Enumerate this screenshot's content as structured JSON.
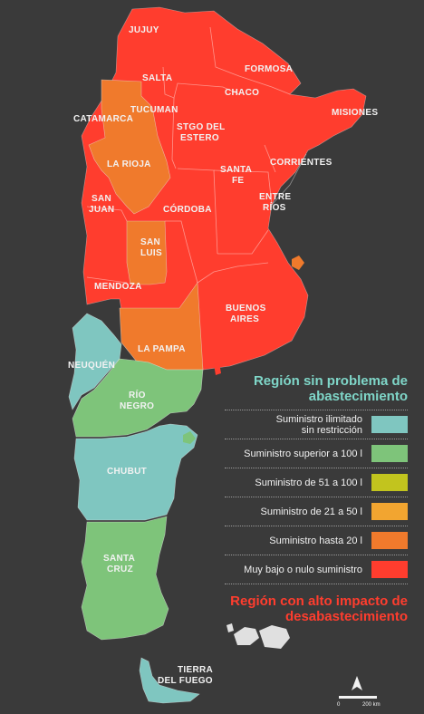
{
  "map": {
    "provinces": [
      {
        "name": "JUJUY",
        "level": "muy_bajo"
      },
      {
        "name": "SALTA",
        "level": "muy_bajo"
      },
      {
        "name": "FORMOSA",
        "level": "muy_bajo"
      },
      {
        "name": "CHACO",
        "level": "muy_bajo"
      },
      {
        "name": "MISIONES",
        "level": "muy_bajo"
      },
      {
        "name": "TUCUMAN",
        "level": "muy_bajo"
      },
      {
        "name": "CATAMARCA",
        "level": "hasta_20"
      },
      {
        "name": "STGO DEL ESTERO",
        "level": "muy_bajo"
      },
      {
        "name": "CORRIENTES",
        "level": "muy_bajo"
      },
      {
        "name": "LA RIOJA",
        "level": "hasta_20"
      },
      {
        "name": "SANTA FE",
        "level": "muy_bajo"
      },
      {
        "name": "ENTRE RÍOS",
        "level": "muy_bajo"
      },
      {
        "name": "SAN JUAN",
        "level": "muy_bajo"
      },
      {
        "name": "CÓRDOBA",
        "level": "muy_bajo"
      },
      {
        "name": "SAN LUIS",
        "level": "hasta_20"
      },
      {
        "name": "MENDOZA",
        "level": "muy_bajo"
      },
      {
        "name": "BUENOS AIRES",
        "level": "muy_bajo"
      },
      {
        "name": "LA PAMPA",
        "level": "hasta_20"
      },
      {
        "name": "NEUQUÉN",
        "level": "ilimitado"
      },
      {
        "name": "RÍO NEGRO",
        "level": "superior_100"
      },
      {
        "name": "CHUBUT",
        "level": "ilimitado"
      },
      {
        "name": "SANTA CRUZ",
        "level": "superior_100"
      },
      {
        "name": "TIERRA DEL FUEGO",
        "level": "ilimitado"
      }
    ],
    "labels": {
      "jujuy": "JUJUY",
      "salta": "SALTA",
      "formosa": "FORMOSA",
      "chaco": "CHACO",
      "misiones": "MISIONES",
      "tucuman": "TUCUMAN",
      "catamarca": "CATAMARCA",
      "stgo1": "STGO DEL",
      "stgo2": "ESTERO",
      "corrientes": "CORRIENTES",
      "larioja": "LA RIOJA",
      "santafe1": "SANTA",
      "santafe2": "FE",
      "entrerios1": "ENTRE",
      "entrerios2": "RÍOS",
      "sanjuan1": "SAN",
      "sanjuan2": "JUAN",
      "cordoba": "CÓRDOBA",
      "sanluis1": "SAN",
      "sanluis2": "LUIS",
      "mendoza": "MENDOZA",
      "bsas1": "BUENOS",
      "bsas2": "AIRES",
      "lapampa": "LA PAMPA",
      "neuquen": "NEUQUÉN",
      "rionegro1": "RÍO",
      "rionegro2": "NEGRO",
      "chubut": "CHUBUT",
      "santacruz1": "SANTA",
      "santacruz2": "CRUZ",
      "tdf1": "TIERRA",
      "tdf2": "DEL FUEGO"
    }
  },
  "legend": {
    "title_green": "Región sin problema de abastecimiento",
    "title_red": "Región con alto impacto de desabastecimiento",
    "items": [
      {
        "label": "Suministro ilimitado sin restricción",
        "color": "#7fc6c0"
      },
      {
        "label": "Suministro superior a 100 l",
        "color": "#7ec47a"
      },
      {
        "label": "Suministro de 51 a 100 l",
        "color": "#c2c41e"
      },
      {
        "label": "Suministro de 21 a 50 l",
        "color": "#f2a530"
      },
      {
        "label": "Suministro hasta 20 l",
        "color": "#f07a2c"
      },
      {
        "label": "Muy bajo o nulo suministro",
        "color": "#ff3d2e"
      }
    ]
  },
  "scale": {
    "start": "0",
    "end": "200 km"
  },
  "colors": {
    "background": "#3a3a3a",
    "ilimitado": "#7fc6c0",
    "superior_100": "#7ec47a",
    "hasta_20": "#f07a2c",
    "muy_bajo": "#ff3d2e"
  }
}
